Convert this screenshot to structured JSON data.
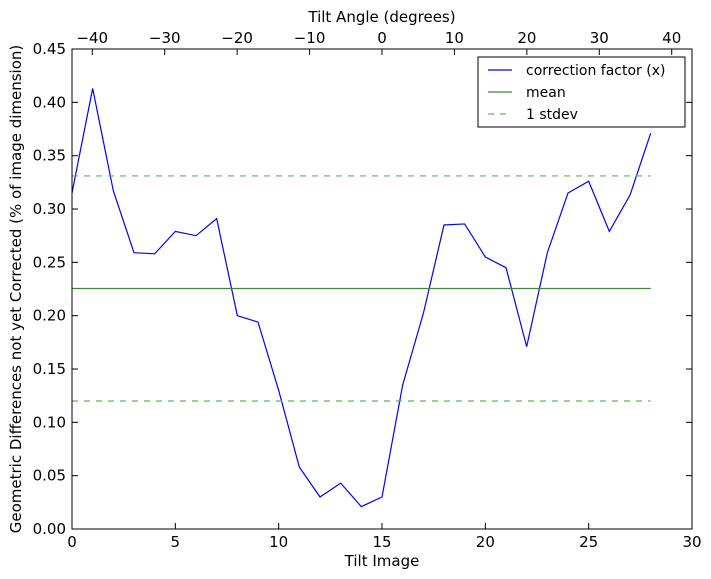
{
  "chart_data": {
    "type": "line",
    "xlabel": "Tilt Image",
    "ylabel": "Geometric Differences not yet Corrected (% of image dimension)",
    "top_xlabel": "Tilt Angle (degrees)",
    "xlim": [
      0,
      30
    ],
    "ylim": [
      0,
      0.45
    ],
    "top_xlim": [
      -42.8,
      42.8
    ],
    "xticks": [
      0,
      5,
      10,
      15,
      20,
      25,
      30
    ],
    "yticks": [
      0.0,
      0.05,
      0.1,
      0.15,
      0.2,
      0.25,
      0.3,
      0.35,
      0.4,
      0.45
    ],
    "top_xticks": [
      -40,
      -30,
      -20,
      -10,
      0,
      10,
      20,
      30,
      40
    ],
    "xtick_labels": [
      "0",
      "5",
      "10",
      "15",
      "20",
      "25",
      "30"
    ],
    "ytick_labels": [
      "0.00",
      "0.05",
      "0.10",
      "0.15",
      "0.20",
      "0.25",
      "0.30",
      "0.35",
      "0.40",
      "0.45"
    ],
    "top_xtick_labels": [
      "−40",
      "−30",
      "−20",
      "−10",
      "0",
      "10",
      "20",
      "30",
      "40"
    ],
    "legend_position": "top-right",
    "series": [
      {
        "name": "correction factor (x)",
        "color": "#0000ff",
        "style": "solid",
        "x": [
          0,
          1,
          2,
          3,
          4,
          5,
          6,
          7,
          8,
          9,
          10,
          11,
          12,
          13,
          14,
          15,
          16,
          17,
          18,
          19,
          20,
          21,
          22,
          23,
          24,
          25,
          26,
          27,
          28
        ],
        "y": [
          0.315,
          0.413,
          0.317,
          0.259,
          0.258,
          0.279,
          0.275,
          0.291,
          0.2,
          0.194,
          0.13,
          0.058,
          0.03,
          0.043,
          0.021,
          0.03,
          0.135,
          0.202,
          0.285,
          0.286,
          0.255,
          0.245,
          0.171,
          0.259,
          0.315,
          0.326,
          0.279,
          0.313,
          0.371
        ]
      },
      {
        "name": "mean",
        "color": "#3a8a3a",
        "style": "solid",
        "x": [
          0,
          28
        ],
        "y": [
          0.2255,
          0.2255
        ]
      },
      {
        "name": "1 stdev",
        "color": "#55bb55",
        "style": "dashed",
        "x": [
          0,
          28
        ],
        "y": [
          0.331,
          0.331
        ]
      },
      {
        "name": "1 stdev lower",
        "color": "#55bb55",
        "style": "dashed",
        "x": [
          0,
          28
        ],
        "y": [
          0.12,
          0.12
        ],
        "hide_in_legend": true
      }
    ]
  }
}
